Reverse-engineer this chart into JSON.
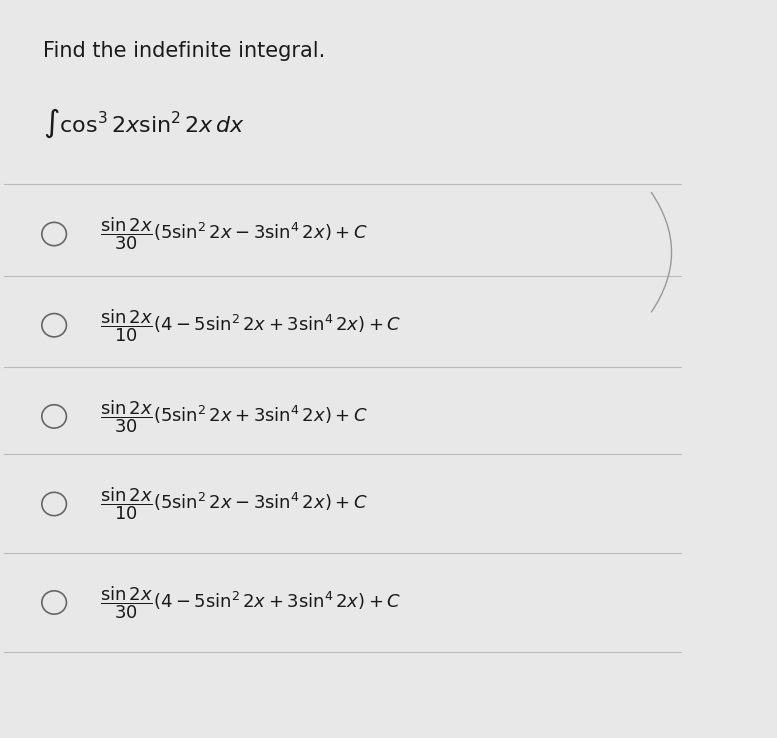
{
  "background_color": "#e8e8e8",
  "title": "Find the indefinite integral.",
  "integral_expr": "$\\int \\cos^3 2x \\sin^2 2x\\, dx$",
  "options": [
    "$\\dfrac{\\sin 2x}{30}\\left(5\\sin^2 2x - 3\\sin^4 2x\\right) + C$",
    "$\\dfrac{\\sin 2x}{10}\\left(4 - 5\\sin^2 2x + 3\\sin^4 2x\\right) + C$",
    "$\\dfrac{\\sin 2x}{30}\\left(5\\sin^2 2x + 3\\sin^4 2x\\right) + C$",
    "$\\dfrac{\\sin 2x}{10}\\left(5\\sin^2 2x - 3\\sin^4 2x\\right) + C$",
    "$\\dfrac{\\sin 2x}{30}\\left(4 - 5\\sin^2 2x + 3\\sin^4 2x\\right) + C$"
  ],
  "title_fontsize": 15,
  "option_fontsize": 13,
  "integral_fontsize": 16,
  "text_color": "#1a1a1a",
  "circle_color": "#666666",
  "line_color": "#bbbbbb",
  "fig_width": 7.77,
  "fig_height": 7.38
}
